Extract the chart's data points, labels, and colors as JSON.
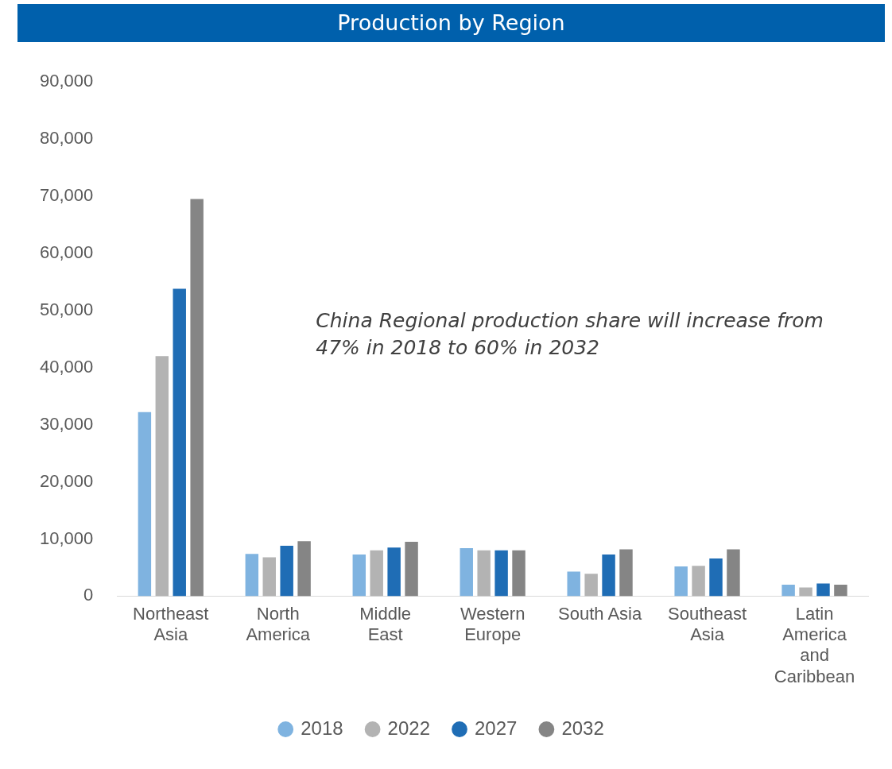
{
  "chart_data": {
    "type": "bar",
    "title": "Production by Region",
    "categories": [
      "Northeast Asia",
      "North America",
      "Middle East",
      "Western Europe",
      "South Asia",
      "Southeast Asia",
      "Latin America and Caribbean"
    ],
    "series": [
      {
        "name": "2018",
        "color": "#7fb3e0",
        "values": [
          32200,
          7400,
          7300,
          8400,
          4300,
          5200,
          2000
        ]
      },
      {
        "name": "2022",
        "color": "#b3b3b3",
        "values": [
          42000,
          6800,
          8000,
          8000,
          3900,
          5300,
          1500
        ]
      },
      {
        "name": "2027",
        "color": "#1f6db5",
        "values": [
          53800,
          8800,
          8500,
          8000,
          7300,
          6600,
          2200
        ]
      },
      {
        "name": "2032",
        "color": "#858585",
        "values": [
          69500,
          9600,
          9500,
          8000,
          8200,
          8200,
          2000
        ]
      }
    ],
    "ylim": [
      0,
      90000
    ],
    "yticks": [
      0,
      {
        "value": 10000,
        "label": "10,000"
      },
      {
        "value": 20000,
        "label": "20,000"
      },
      {
        "value": 30000,
        "label": "30,000"
      },
      {
        "value": 40000,
        "label": "40,000"
      },
      {
        "value": 50000,
        "label": "50,000"
      },
      {
        "value": 60000,
        "label": "60,000"
      },
      {
        "value": 70000,
        "label": "70,000"
      },
      {
        "value": 80000,
        "label": "80,000"
      },
      {
        "value": 90000,
        "label": "90,000"
      }
    ],
    "grid": false,
    "legend": "bottom",
    "annotations": [
      "China Regional production share will increase from 47% in 2018 to 60% in 2032"
    ]
  }
}
